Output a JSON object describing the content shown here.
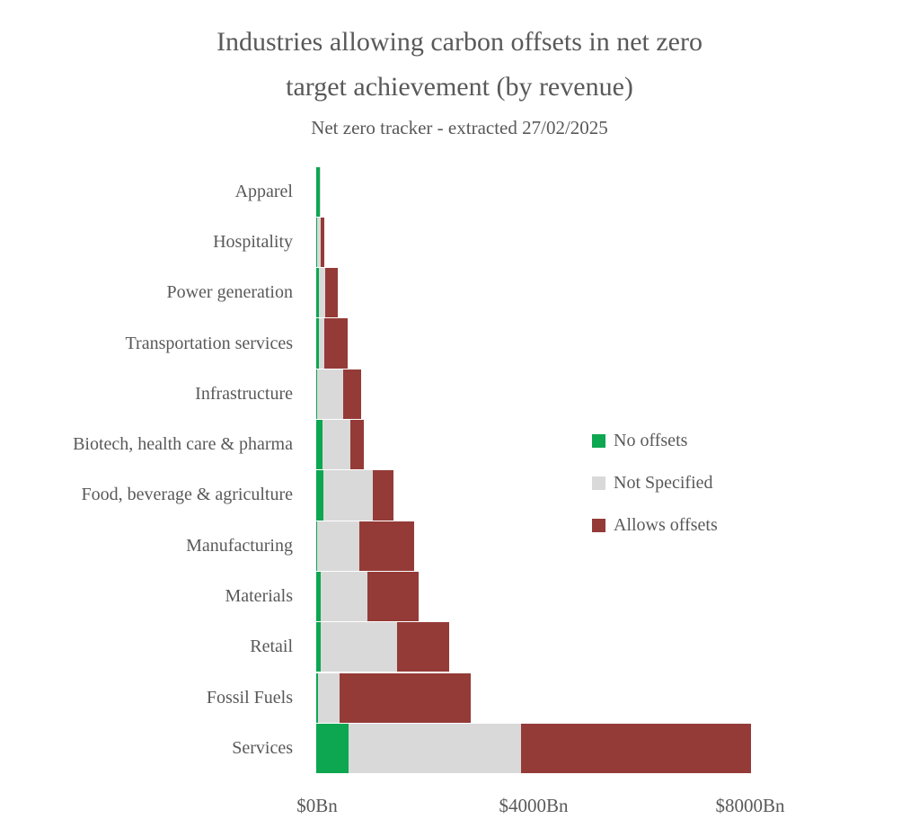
{
  "colors": {
    "background": "#ffffff",
    "text": "#595959",
    "no_offsets": "#0ca750",
    "not_specified": "#d9d9d9",
    "allows_offsets": "#943b38"
  },
  "chart_data": {
    "type": "bar",
    "orientation": "horizontal",
    "stacked": true,
    "title": "Industries allowing carbon offsets in net zero target achievement (by revenue)",
    "title_lines": [
      "Industries allowing carbon offsets in net zero",
      "target achievement (by revenue)"
    ],
    "subtitle": "Net zero tracker - extracted 27/02/2025",
    "unit": "$Bn",
    "categories": [
      "Apparel",
      "Hospitality",
      "Power generation",
      "Transportation services",
      "Infrastructure",
      "Biotech, health care & pharma",
      "Food, beverage & agriculture",
      "Manufacturing",
      "Materials",
      "Retail",
      "Fossil Fuels",
      "Services"
    ],
    "series": [
      {
        "name": "No offsets",
        "color": "#0ca750",
        "values": [
          60,
          15,
          50,
          50,
          10,
          115,
          130,
          20,
          85,
          85,
          30,
          600
        ]
      },
      {
        "name": "Not Specified",
        "color": "#d9d9d9",
        "values": [
          10,
          70,
          115,
          95,
          480,
          515,
          910,
          780,
          860,
          1410,
          400,
          3190
        ]
      },
      {
        "name": "Allows offsets",
        "color": "#943b38",
        "values": [
          0,
          70,
          240,
          430,
          340,
          255,
          380,
          1010,
          945,
          960,
          2420,
          4250
        ]
      }
    ],
    "xlim": [
      0,
      8000
    ],
    "x_ticks": [
      {
        "value": 0,
        "label": "$0Bn"
      },
      {
        "value": 4000,
        "label": "$4000Bn"
      },
      {
        "value": 8000,
        "label": "$8000Bn"
      }
    ],
    "grid": false,
    "legend_position": "center-right",
    "legend": [
      "No offsets",
      "Not Specified",
      "Allows offsets"
    ]
  }
}
